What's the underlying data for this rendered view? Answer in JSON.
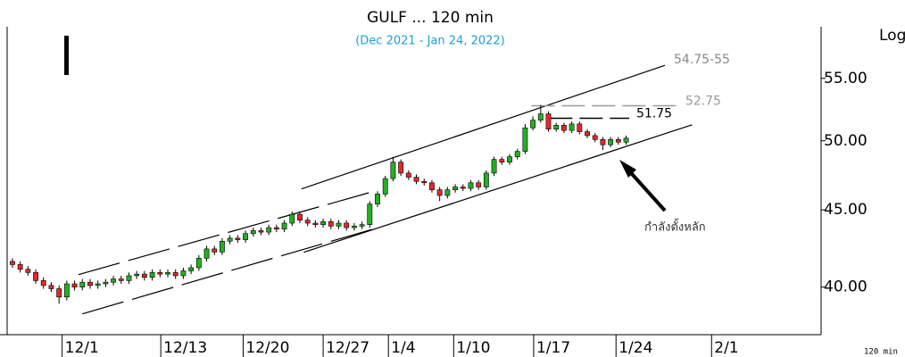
{
  "chart_data": {
    "type": "candlestick",
    "title": "GULF ... 120 min",
    "subtitle": "(Dec 2021 - Jan 24, 2022)",
    "scale_label": "Log",
    "interval_label": "120 min",
    "log_scale": true,
    "up_color": "#22b022",
    "down_color": "#e8262a",
    "ylim": [
      37.2,
      59.5
    ],
    "yticks": [
      {
        "value": 40,
        "label": "40.00"
      },
      {
        "value": 45,
        "label": "45.00"
      },
      {
        "value": 50,
        "label": "50.00"
      },
      {
        "value": 55,
        "label": "55.00"
      }
    ],
    "xlim": [
      -1.6,
      104.1
    ],
    "xticks": [
      {
        "value": 6.4,
        "label": "12/1"
      },
      {
        "value": 19.1,
        "label": "12/13"
      },
      {
        "value": 29.7,
        "label": "12/20"
      },
      {
        "value": 40,
        "label": "12/27"
      },
      {
        "value": 48.4,
        "label": "1/4"
      },
      {
        "value": 56.8,
        "label": "1/10"
      },
      {
        "value": 67.1,
        "label": "1/17"
      },
      {
        "value": 77.7,
        "label": "1/24"
      },
      {
        "value": 90,
        "label": "2/1"
      }
    ],
    "open": [
      41.6,
      41.4,
      41.1,
      40.9,
      40.4,
      40.1,
      39.9,
      39.4,
      40.2,
      40.0,
      40.3,
      40.1,
      40.2,
      40.3,
      40.5,
      40.4,
      40.7,
      40.8,
      40.6,
      40.9,
      40.8,
      40.9,
      40.7,
      41.0,
      41.2,
      41.8,
      42.4,
      42.2,
      42.9,
      43.1,
      43.0,
      43.4,
      43.6,
      43.5,
      43.8,
      43.7,
      44.1,
      44.7,
      44.3,
      44.1,
      44.0,
      44.2,
      43.9,
      44.1,
      43.8,
      43.9,
      44.0,
      45.4,
      46.1,
      47.2,
      48.4,
      47.6,
      47.3,
      47.0,
      46.9,
      46.4,
      46.0,
      46.4,
      46.6,
      46.5,
      46.9,
      46.6,
      47.6,
      48.6,
      48.4,
      48.8,
      49.2,
      51.0,
      51.6,
      52.1,
      50.9,
      51.2,
      50.8,
      51.3,
      50.7,
      50.4,
      50.1,
      49.7,
      50.1,
      49.9
    ],
    "high": [
      41.8,
      41.6,
      41.3,
      41.1,
      40.6,
      40.3,
      40.1,
      40.4,
      40.4,
      40.5,
      40.5,
      40.4,
      40.5,
      40.7,
      40.7,
      40.9,
      41.0,
      41.0,
      41.1,
      41.1,
      41.1,
      41.1,
      41.2,
      41.4,
      42.0,
      42.6,
      42.6,
      43.1,
      43.3,
      43.3,
      43.6,
      43.8,
      43.8,
      44.0,
      44.0,
      44.3,
      44.9,
      44.9,
      44.5,
      44.3,
      44.4,
      44.4,
      44.3,
      44.3,
      44.1,
      44.2,
      45.6,
      46.3,
      47.4,
      48.8,
      48.6,
      47.8,
      47.5,
      47.2,
      47.1,
      46.6,
      46.6,
      46.8,
      46.8,
      47.1,
      47.1,
      47.8,
      48.8,
      48.8,
      49.0,
      49.4,
      51.3,
      51.9,
      52.8,
      52.3,
      51.4,
      51.4,
      51.5,
      51.5,
      50.9,
      50.6,
      50.3,
      50.3,
      50.3,
      50.4
    ],
    "low": [
      41.2,
      40.9,
      40.7,
      40.2,
      39.9,
      39.7,
      39.0,
      39.2,
      39.8,
      39.8,
      39.9,
      39.9,
      40.0,
      40.1,
      40.2,
      40.2,
      40.5,
      40.4,
      40.4,
      40.6,
      40.6,
      40.5,
      40.5,
      40.8,
      41.0,
      41.6,
      42.0,
      42.0,
      42.7,
      42.8,
      42.8,
      43.2,
      43.3,
      43.3,
      43.5,
      43.5,
      43.9,
      44.1,
      43.9,
      43.8,
      43.8,
      43.7,
      43.7,
      43.6,
      43.6,
      43.7,
      43.8,
      45.2,
      45.9,
      47.0,
      47.4,
      47.1,
      46.8,
      46.7,
      46.2,
      45.6,
      45.8,
      46.2,
      46.3,
      46.3,
      46.4,
      46.4,
      47.4,
      48.2,
      48.2,
      48.6,
      49.0,
      50.8,
      51.4,
      50.7,
      50.7,
      50.6,
      50.6,
      50.5,
      50.2,
      49.9,
      49.3,
      49.5,
      49.7,
      49.7
    ],
    "close": [
      41.4,
      41.1,
      40.9,
      40.4,
      40.1,
      39.9,
      39.4,
      40.2,
      40.0,
      40.3,
      40.1,
      40.2,
      40.3,
      40.5,
      40.4,
      40.7,
      40.8,
      40.6,
      40.9,
      40.8,
      40.9,
      40.7,
      41.0,
      41.2,
      41.8,
      42.4,
      42.2,
      42.9,
      43.1,
      43.0,
      43.4,
      43.6,
      43.5,
      43.8,
      43.7,
      44.1,
      44.7,
      44.3,
      44.1,
      44.0,
      44.2,
      43.9,
      44.1,
      43.8,
      43.9,
      44.0,
      45.4,
      46.1,
      47.2,
      48.4,
      47.6,
      47.3,
      47.0,
      46.9,
      46.4,
      46.0,
      46.4,
      46.6,
      46.5,
      46.9,
      46.6,
      47.6,
      48.6,
      48.4,
      48.8,
      49.2,
      51.0,
      51.6,
      52.1,
      50.9,
      51.2,
      50.8,
      51.3,
      50.7,
      50.4,
      50.1,
      49.7,
      50.1,
      49.9,
      50.2
    ],
    "trendlines": [
      {
        "x": [
          37.2,
          84.0
        ],
        "y": [
          46.46,
          56.1
        ],
        "dashed": false,
        "color": "#000000"
      },
      {
        "x": [
          37.5,
          87.5
        ],
        "y": [
          42.18,
          51.24
        ],
        "dashed": false,
        "color": "#000000"
      },
      {
        "x": [
          8.5,
          46.4
        ],
        "y": [
          40.77,
          46.27
        ],
        "dashed": true,
        "color": "#000000"
      },
      {
        "x": [
          9.0,
          47.2
        ],
        "y": [
          38.4,
          43.82
        ],
        "dashed": true,
        "color": "#000000"
      }
    ],
    "levels": [
      {
        "label": "52.75",
        "value": 52.75,
        "x": [
          66.8,
          85.7
        ],
        "color": "#999999"
      },
      {
        "label": "51.75",
        "value": 51.75,
        "x": [
          69.1,
          79.4
        ],
        "color": "#000000"
      }
    ],
    "channel_label": "54.75-55",
    "annotation": "กำลังตั้งหลัก"
  }
}
